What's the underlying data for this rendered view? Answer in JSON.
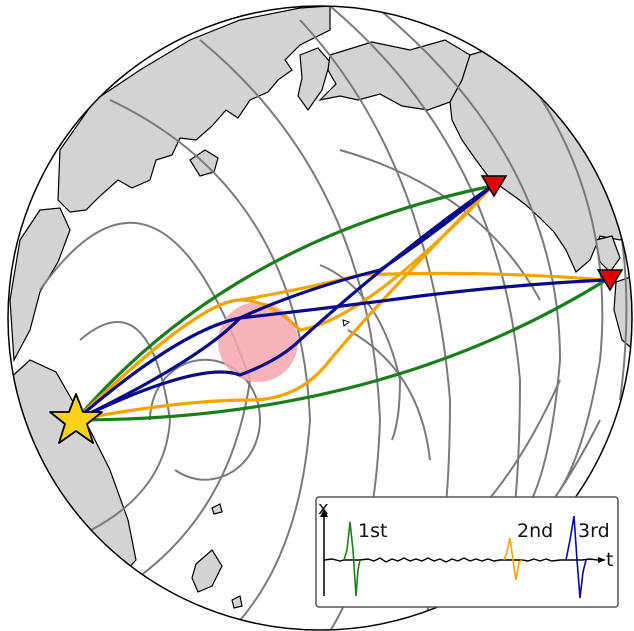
{
  "inset": {
    "x_axis_label": "t",
    "y_axis_label": "x",
    "arrivals": [
      {
        "label": "1st",
        "color": "#1a7f1a"
      },
      {
        "label": "2nd",
        "color": "#f5a300"
      },
      {
        "label": "3rd",
        "color": "#0a0a8c"
      }
    ]
  },
  "colors": {
    "ocean": "#ffffff",
    "land": "#d3d3d3",
    "coastline": "#000000",
    "wavefront": "#7a7a7a",
    "direct_path": "#1a7f1a",
    "scattered_path_1": "#f5a300",
    "scattered_path_2": "#0a0a8c",
    "anomaly": "#f4a6ad",
    "source": "#ffd21a",
    "receiver": "#e00000"
  },
  "markers": {
    "source_icon": "star-icon",
    "receiver_icon": "triangle-down-icon"
  }
}
